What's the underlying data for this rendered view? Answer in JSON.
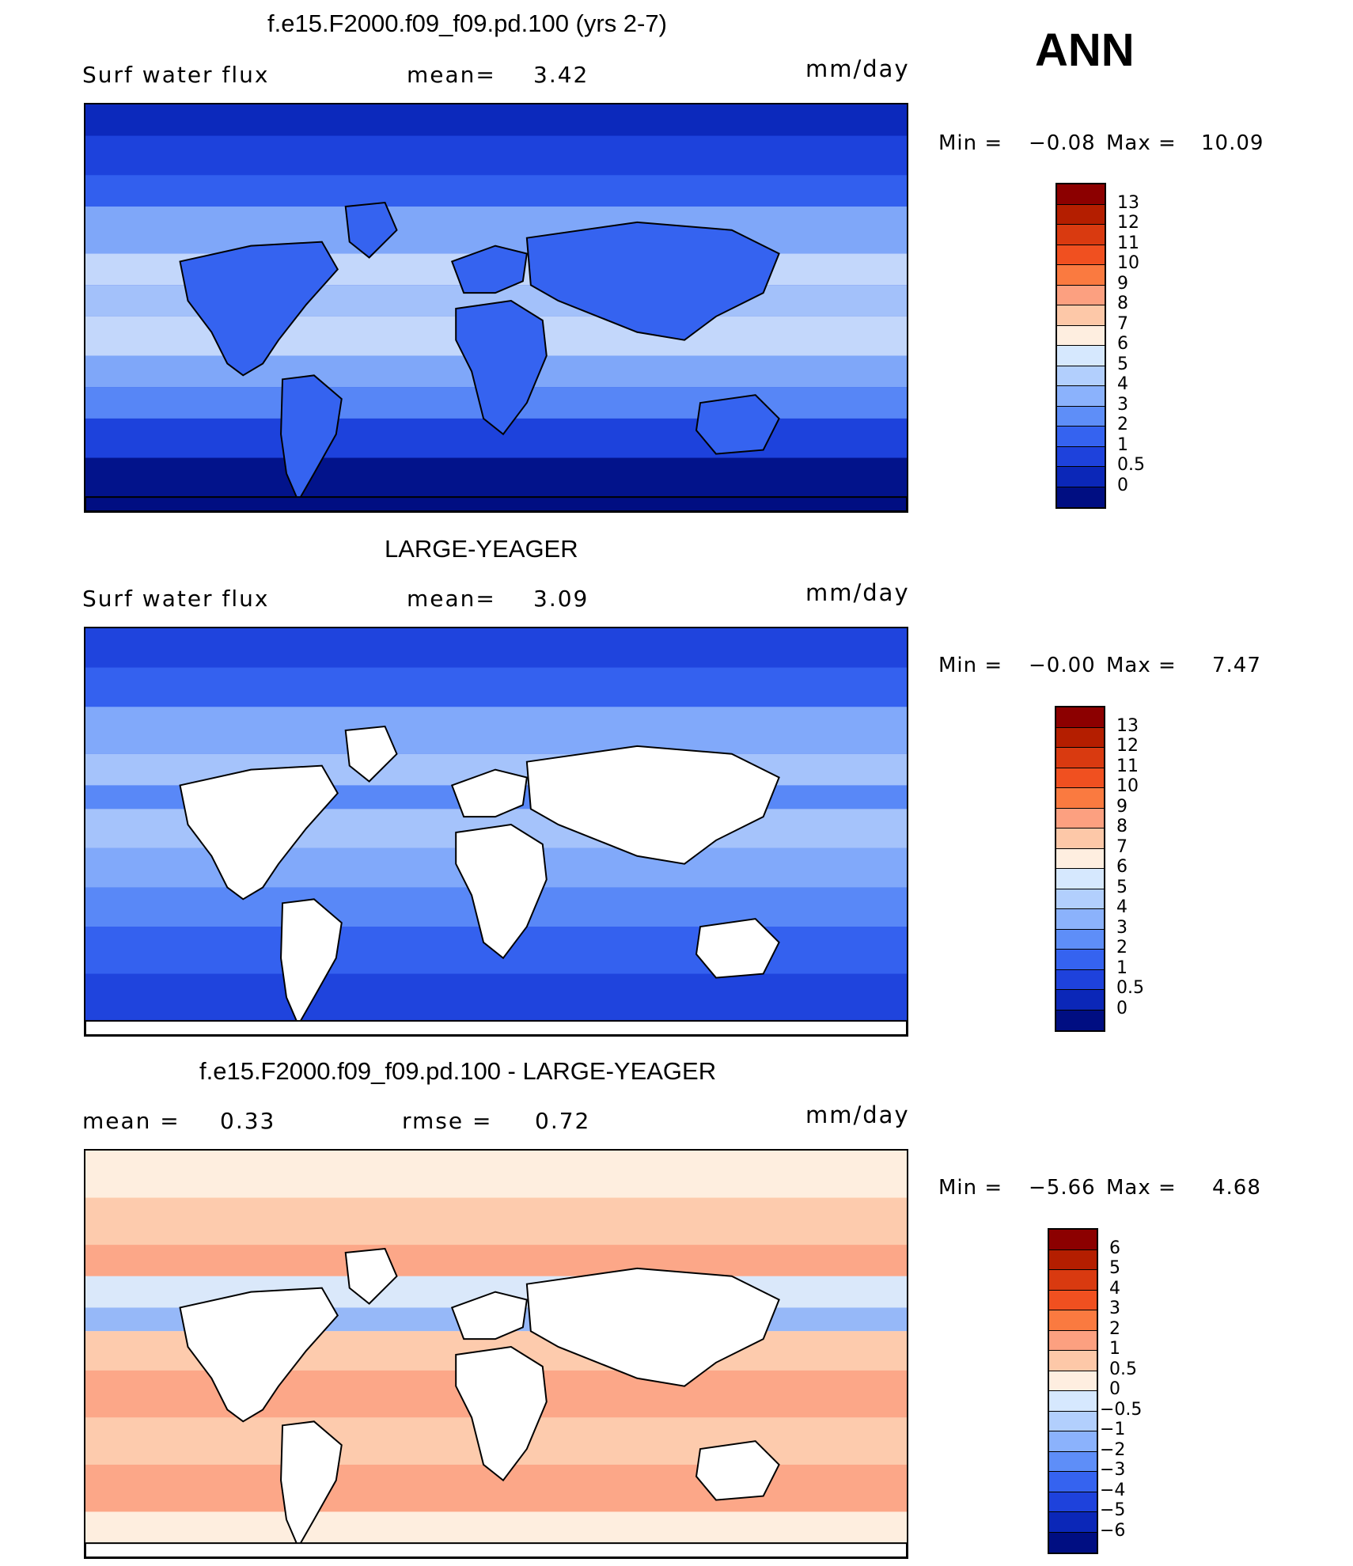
{
  "season": "ANN",
  "land_color": "#ffffff",
  "coast_color": "#000000",
  "panels": [
    {
      "id": "model",
      "title": "f.e15.F2000.f09_f09.pd.100 (yrs 2-7)",
      "left_label": "Surf water flux",
      "mid_label": "mean=",
      "mid_value": "3.42",
      "units": "mm/day",
      "min_label": "Min =",
      "min_value": "−0.08",
      "max_label": "Max =",
      "max_value": "10.09",
      "land_masked": false,
      "base_color": "#1a3fe0",
      "colorbar": {
        "labels": [
          "13",
          "12",
          "11",
          "10",
          "9",
          "8",
          "7",
          "6",
          "5",
          "4",
          "3",
          "2",
          "1",
          "0.5",
          "0"
        ],
        "colors": [
          "#8c0000",
          "#b41e00",
          "#d93a10",
          "#f05020",
          "#fa7a40",
          "#fca080",
          "#fdc8a8",
          "#feeee0",
          "#d6e8fe",
          "#b2cffd",
          "#8bb2fc",
          "#5e8ef8",
          "#3563f0",
          "#1e42dc",
          "#0b27b8",
          "#000e82"
        ]
      }
    },
    {
      "id": "obs",
      "title": "LARGE-YEAGER",
      "left_label": "Surf water flux",
      "mid_label": "mean=",
      "mid_value": "3.09",
      "units": "mm/day",
      "min_label": "Min =",
      "min_value": "−0.00",
      "max_label": "Max =",
      "max_value": "7.47",
      "land_masked": true,
      "base_color": "#2a55ea",
      "colorbar": {
        "labels": [
          "13",
          "12",
          "11",
          "10",
          "9",
          "8",
          "7",
          "6",
          "5",
          "4",
          "3",
          "2",
          "1",
          "0.5",
          "0"
        ],
        "colors": [
          "#8c0000",
          "#b41e00",
          "#d93a10",
          "#f05020",
          "#fa7a40",
          "#fca080",
          "#fdc8a8",
          "#feeee0",
          "#d6e8fe",
          "#b2cffd",
          "#8bb2fc",
          "#5e8ef8",
          "#3563f0",
          "#1e42dc",
          "#0b27b8",
          "#000e82"
        ]
      }
    },
    {
      "id": "diff",
      "title": "f.e15.F2000.f09_f09.pd.100 - LARGE-YEAGER",
      "left_label": "mean =",
      "left_value": "0.33",
      "mid_label": "rmse =",
      "mid_value": "0.72",
      "units": "mm/day",
      "min_label": "Min =",
      "min_value": "−5.66",
      "max_label": "Max =",
      "max_value": "4.68",
      "land_masked": true,
      "base_color": "#fde6d6",
      "colorbar": {
        "labels": [
          "6",
          "5",
          "4",
          "3",
          "2",
          "1",
          "0.5",
          "0",
          "−0.5",
          "−1",
          "−2",
          "−3",
          "−4",
          "−5",
          "−6"
        ],
        "colors": [
          "#8c0000",
          "#b41e00",
          "#d93a10",
          "#f05020",
          "#fa7a40",
          "#fca080",
          "#fdc8a8",
          "#feeee0",
          "#d6e8fe",
          "#b2cffd",
          "#8bb2fc",
          "#5e8ef8",
          "#3563f0",
          "#1e42dc",
          "#0b27b8",
          "#000e82"
        ]
      }
    }
  ]
}
